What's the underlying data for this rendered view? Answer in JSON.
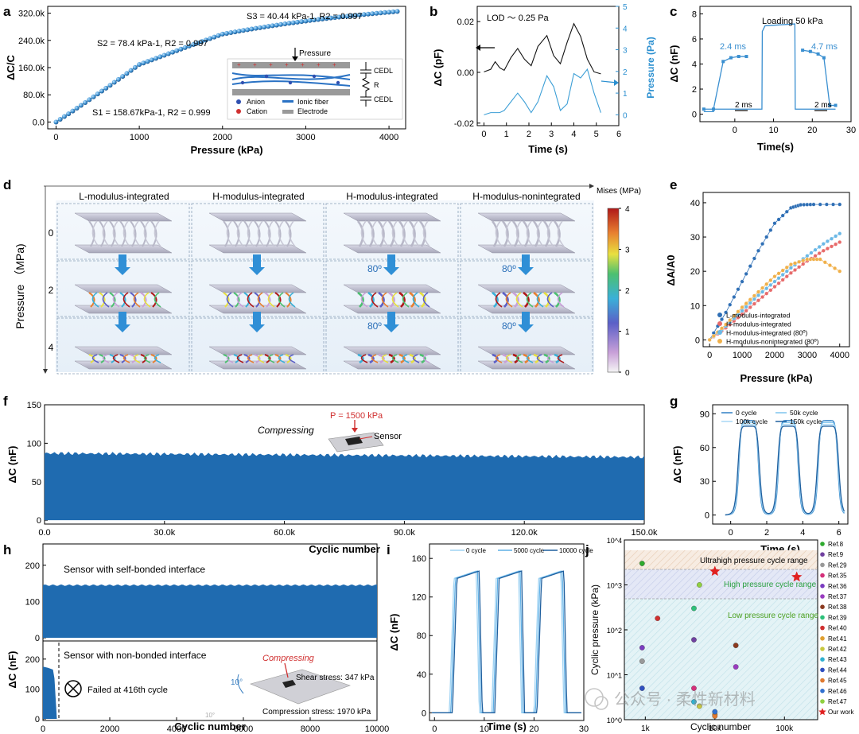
{
  "chart_data": [
    {
      "panel": "a",
      "type": "scatter",
      "xlabel": "Pressure (kPa)",
      "ylabel": "ΔC/C",
      "xlim": [
        -100,
        4200
      ],
      "ylim": [
        -20000,
        340000
      ],
      "xticks": [
        "0",
        "1000",
        "2000",
        "3000",
        "4000"
      ],
      "yticks": [
        "0.0",
        "80.0k",
        "160.0k",
        "240.0k",
        "320.0k"
      ],
      "segments": [
        {
          "label": "S1 = 158.67kPa-1, R2 = 0.999",
          "x0": 0,
          "x1": 1000,
          "slope": 158.67
        },
        {
          "label": "S2 = 78.4 kPa-1, R2 = 0.997",
          "x0": 1000,
          "x1": 2000,
          "slope": 78.4
        },
        {
          "label": "S3 = 40.44 kPa-1, R2 = 0.997",
          "x0": 2000,
          "x1": 4100,
          "slope": 40.44
        }
      ],
      "inset": {
        "pressure_label": "Pressure",
        "r_label": "R",
        "cedl_label": "CEDL",
        "legend": [
          "Anion",
          "Cation",
          "Ionic fiber",
          "Electrode"
        ]
      }
    },
    {
      "panel": "b",
      "type": "line",
      "xlabel": "Time (s)",
      "ylabel": "ΔC (pF)",
      "y2label": "Pressure (Pa)",
      "annotation": "LOD ～ 0.25 Pa",
      "xlim": [
        -0.3,
        6
      ],
      "ylim": [
        -0.021,
        0.026
      ],
      "y2lim": [
        -0.5,
        5
      ],
      "xticks": [
        "0",
        "1",
        "2",
        "3",
        "4",
        "5",
        "6"
      ],
      "yticks": [
        "-0.02",
        "0.00",
        "0.02"
      ],
      "y2ticks": [
        "0",
        "1",
        "2",
        "3",
        "4",
        "5"
      ],
      "series": [
        {
          "name": "ΔC",
          "color": "#111111",
          "x": [
            0,
            0.3,
            0.5,
            0.7,
            0.9,
            1.2,
            1.5,
            1.8,
            2.1,
            2.4,
            2.8,
            3.1,
            3.4,
            3.7,
            4.0,
            4.3,
            4.6,
            4.9,
            5.2
          ],
          "y": [
            0.0002,
            0.0012,
            0.0042,
            0.0018,
            0.0008,
            0.0058,
            0.0094,
            0.0052,
            0.0026,
            0.0102,
            0.0145,
            0.0066,
            0.0034,
            0.0118,
            0.0192,
            0.0142,
            0.0052,
            0.0002,
            -0.0006
          ]
        },
        {
          "name": "Pressure",
          "color": "#3d9fd6",
          "axis": "right",
          "x": [
            0,
            0.3,
            0.5,
            0.7,
            0.9,
            1.2,
            1.5,
            1.8,
            2.1,
            2.4,
            2.8,
            3.1,
            3.4,
            3.7,
            4.0,
            4.3,
            4.6,
            4.9,
            5.2
          ],
          "y": [
            0,
            0.1,
            0.1,
            0.1,
            0.2,
            0.6,
            1.0,
            0.6,
            0.1,
            0.6,
            1.8,
            1.3,
            0.2,
            0.5,
            1.9,
            1.7,
            2.1,
            1.0,
            0.1
          ]
        }
      ]
    },
    {
      "panel": "c",
      "type": "line",
      "xlabel": "Time(s)",
      "ylabel": "ΔC (nF)",
      "annotation": "Loading 50 kPa",
      "labels": [
        "2.4 ms",
        "4.7 ms",
        "2 ms",
        "2 ms"
      ],
      "xlim": [
        -9,
        30
      ],
      "ylim": [
        -0.6,
        8.6
      ],
      "xticks": [
        "0",
        "10",
        "20",
        "30"
      ],
      "yticks": [
        "0",
        "2",
        "4",
        "6",
        "8"
      ],
      "series": [
        {
          "name": "main",
          "color": "#3a8fd0",
          "x": [
            -8,
            -5.5,
            -5.4,
            7,
            7.1,
            7.8,
            15.5,
            15.6,
            18.5,
            26
          ],
          "y": [
            0.2,
            0.2,
            0.4,
            0.4,
            6.6,
            7.05,
            7.2,
            0.4,
            0.4,
            0.4
          ]
        },
        {
          "name": "rise-inset",
          "color": "#3a8fd0",
          "x": [
            -8,
            -5.5,
            -3,
            -1,
            1,
            3
          ],
          "y": [
            0.4,
            0.4,
            4.2,
            4.5,
            4.6,
            4.6
          ]
        },
        {
          "name": "fall-inset",
          "color": "#3a8fd0",
          "x": [
            17.5,
            19.5,
            21.5,
            23,
            24.5,
            26
          ],
          "y": [
            5.1,
            5.0,
            4.8,
            4.5,
            0.7,
            0.7
          ]
        }
      ]
    },
    {
      "panel": "d",
      "type": "table",
      "columns": [
        "L-modulus-integrated",
        "H-modulus-integrated",
        "H-modulus-integrated",
        "H-modulus-nonintegrated"
      ],
      "row_labels": [
        "0",
        "2",
        "4"
      ],
      "axis_label": "Pressure （MPa)",
      "angle_label": "80º",
      "colorbar": {
        "title": "Mises\n(MPa)",
        "ticks": [
          "0",
          "1",
          "2",
          "3",
          "4"
        ]
      }
    },
    {
      "panel": "e",
      "type": "line",
      "xlabel": "Pressure (kPa)",
      "ylabel": "ΔA/A0",
      "xlim": [
        -200,
        4300
      ],
      "ylim": [
        -2,
        43
      ],
      "xticks": [
        "0",
        "1000",
        "2000",
        "3000",
        "4000"
      ],
      "yticks": [
        "0",
        "10",
        "20",
        "30",
        "40"
      ],
      "series": [
        {
          "name": "L-modulus-integrated",
          "color": "#2f6fb5",
          "x": [
            0,
            500,
            1000,
            1500,
            2000,
            2500,
            2800,
            3200,
            4000
          ],
          "y": [
            0,
            8,
            17,
            26,
            34,
            38.5,
            39.4,
            39.5,
            39.5
          ]
        },
        {
          "name": "H-modulus-integrated",
          "color": "#e76a6a",
          "x": [
            0,
            500,
            1000,
            1500,
            2000,
            2500,
            3000,
            3500,
            4000
          ],
          "y": [
            0,
            3.5,
            7.5,
            11.5,
            15.5,
            19.5,
            23,
            26,
            28.5
          ]
        },
        {
          "name": "H-modulus-integrated (80º)",
          "color": "#6ab8e6",
          "x": [
            0,
            500,
            1000,
            1500,
            2000,
            2500,
            3000,
            3500,
            4000
          ],
          "y": [
            0,
            4,
            8.5,
            13,
            17,
            21,
            24.5,
            28,
            31
          ]
        },
        {
          "name": "H-modulus-nonintegrated (80º)",
          "color": "#f0b04a",
          "x": [
            0,
            500,
            1000,
            1500,
            2000,
            2500,
            3000,
            3400,
            4000
          ],
          "y": [
            0,
            4.5,
            9.5,
            14,
            18.5,
            22,
            23.5,
            23.5,
            20
          ]
        }
      ]
    },
    {
      "panel": "f",
      "type": "area",
      "xlabel": "Cyclic number",
      "ylabel": "ΔC (nF)",
      "xlim": [
        0,
        150000
      ],
      "ylim": [
        -5,
        150
      ],
      "xticks": [
        "0.0",
        "30.0k",
        "60.0k",
        "90.0k",
        "120.0k",
        "150.0k"
      ],
      "yticks": [
        "0",
        "50",
        "100",
        "150"
      ],
      "band": {
        "lower": 0,
        "upper_start": 87,
        "upper_end": 82
      },
      "annotations": {
        "label": "Compressing",
        "pressure": "P = 1500 kPa",
        "sensor": "Sensor"
      }
    },
    {
      "panel": "g",
      "type": "line",
      "xlabel": "Time (s)",
      "ylabel": "ΔC (nF)",
      "xlim": [
        -1,
        6.5
      ],
      "ylim": [
        -8,
        98
      ],
      "xticks": [
        "0",
        "2",
        "4",
        "6"
      ],
      "yticks": [
        "0",
        "30",
        "60",
        "90"
      ],
      "legend": [
        "0 cycle",
        "50k cycle",
        "100k cycle",
        "150k cycle"
      ],
      "pulse_centers": [
        1,
        3.2,
        5.4
      ],
      "peak": 84
    },
    {
      "panel": "h",
      "type": "area",
      "xlabel": "Cyclic number",
      "ylabel": "ΔC (nF)",
      "xlim": [
        0,
        10000
      ],
      "ylim_top": [
        0,
        250
      ],
      "ylim_bottom": [
        0,
        250
      ],
      "xticks": [
        "0",
        "2000",
        "4000",
        "6000",
        "8000",
        "10000"
      ],
      "yticks": [
        "0",
        "100",
        "200"
      ],
      "top": {
        "label": "Sensor with self-bonded interface",
        "upper": 145
      },
      "bottom": {
        "label": "Sensor with non-bonded interface",
        "fail": "Failed at 416th cycle",
        "fail_cycle": 416,
        "upper": 175
      },
      "inset": {
        "compressing": "Compressing",
        "shear": "Shear stress: 347 kPa",
        "compression": "Compression stress: 1970 kPa",
        "angle": "10°",
        "angle2": "10°"
      }
    },
    {
      "panel": "i",
      "type": "line",
      "xlabel": "Time (s)",
      "ylabel": "ΔC (nF)",
      "xlim": [
        -1,
        30
      ],
      "ylim": [
        -8,
        175
      ],
      "xticks": [
        "0",
        "10",
        "20",
        "30"
      ],
      "yticks": [
        "0",
        "40",
        "80",
        "120",
        "160"
      ],
      "legend": [
        "0 cycle",
        "5000 cycle",
        "10000 cycle"
      ],
      "pulse_starts": [
        3,
        11.5,
        20
      ],
      "peak": 148
    },
    {
      "panel": "j",
      "type": "scatter",
      "xlabel": "Cyclic number",
      "ylabel": "Cyclic pressure (kPa)",
      "xscale": "log",
      "yscale": "log",
      "xlim": [
        500,
        300000
      ],
      "ylim": [
        1,
        10000
      ],
      "xticks": [
        "1k",
        "10k",
        "100k"
      ],
      "yticks": [
        "10^0",
        "10^1",
        "10^2",
        "10^3",
        "10^4"
      ],
      "ranges": [
        "Ultrahigh pressure cycle range",
        "High pressure cycle range",
        "Low pressure cycle range"
      ],
      "points": [
        {
          "name": "Ref.8",
          "x": 900,
          "y": 3000,
          "color": "#2eaa2e"
        },
        {
          "name": "Ref.9",
          "x": 5000,
          "y": 60,
          "color": "#7040a0"
        },
        {
          "name": "Ref.29",
          "x": 900,
          "y": 20,
          "color": "#999999"
        },
        {
          "name": "Ref.35",
          "x": 5000,
          "y": 5,
          "color": "#d4307a"
        },
        {
          "name": "Ref.36",
          "x": 900,
          "y": 40,
          "color": "#7a3cc0"
        },
        {
          "name": "Ref.37",
          "x": 20000,
          "y": 15,
          "color": "#9a3cc0"
        },
        {
          "name": "Ref.38",
          "x": 20000,
          "y": 45,
          "color": "#8b3a20"
        },
        {
          "name": "Ref.39",
          "x": 5000,
          "y": 300,
          "color": "#2ec07a"
        },
        {
          "name": "Ref.40",
          "x": 1500,
          "y": 180,
          "color": "#d03030"
        },
        {
          "name": "Ref.41",
          "x": 10000,
          "y": 1.3,
          "color": "#e0a030"
        },
        {
          "name": "Ref.42",
          "x": 6000,
          "y": 2,
          "color": "#c8c840"
        },
        {
          "name": "Ref.43",
          "x": 5000,
          "y": 2.5,
          "color": "#30b0d0"
        },
        {
          "name": "Ref.44",
          "x": 900,
          "y": 5,
          "color": "#3050c0"
        },
        {
          "name": "Ref.45",
          "x": 10000,
          "y": 1.2,
          "color": "#e07a30"
        },
        {
          "name": "Ref.46",
          "x": 10000,
          "y": 1.5,
          "color": "#3070d0"
        },
        {
          "name": "Ref.47",
          "x": 6000,
          "y": 1000,
          "color": "#90d040"
        },
        {
          "name": "Our work",
          "x": 10000,
          "y": 2000,
          "color": "#e02020"
        },
        {
          "name": "Our work",
          "x": 150000,
          "y": 1500,
          "color": "#e02020"
        }
      ]
    }
  ],
  "panel_labels": [
    "a",
    "b",
    "c",
    "d",
    "e",
    "f",
    "g",
    "h",
    "i",
    "j"
  ],
  "watermark": "公众号 · 柔性新材料"
}
